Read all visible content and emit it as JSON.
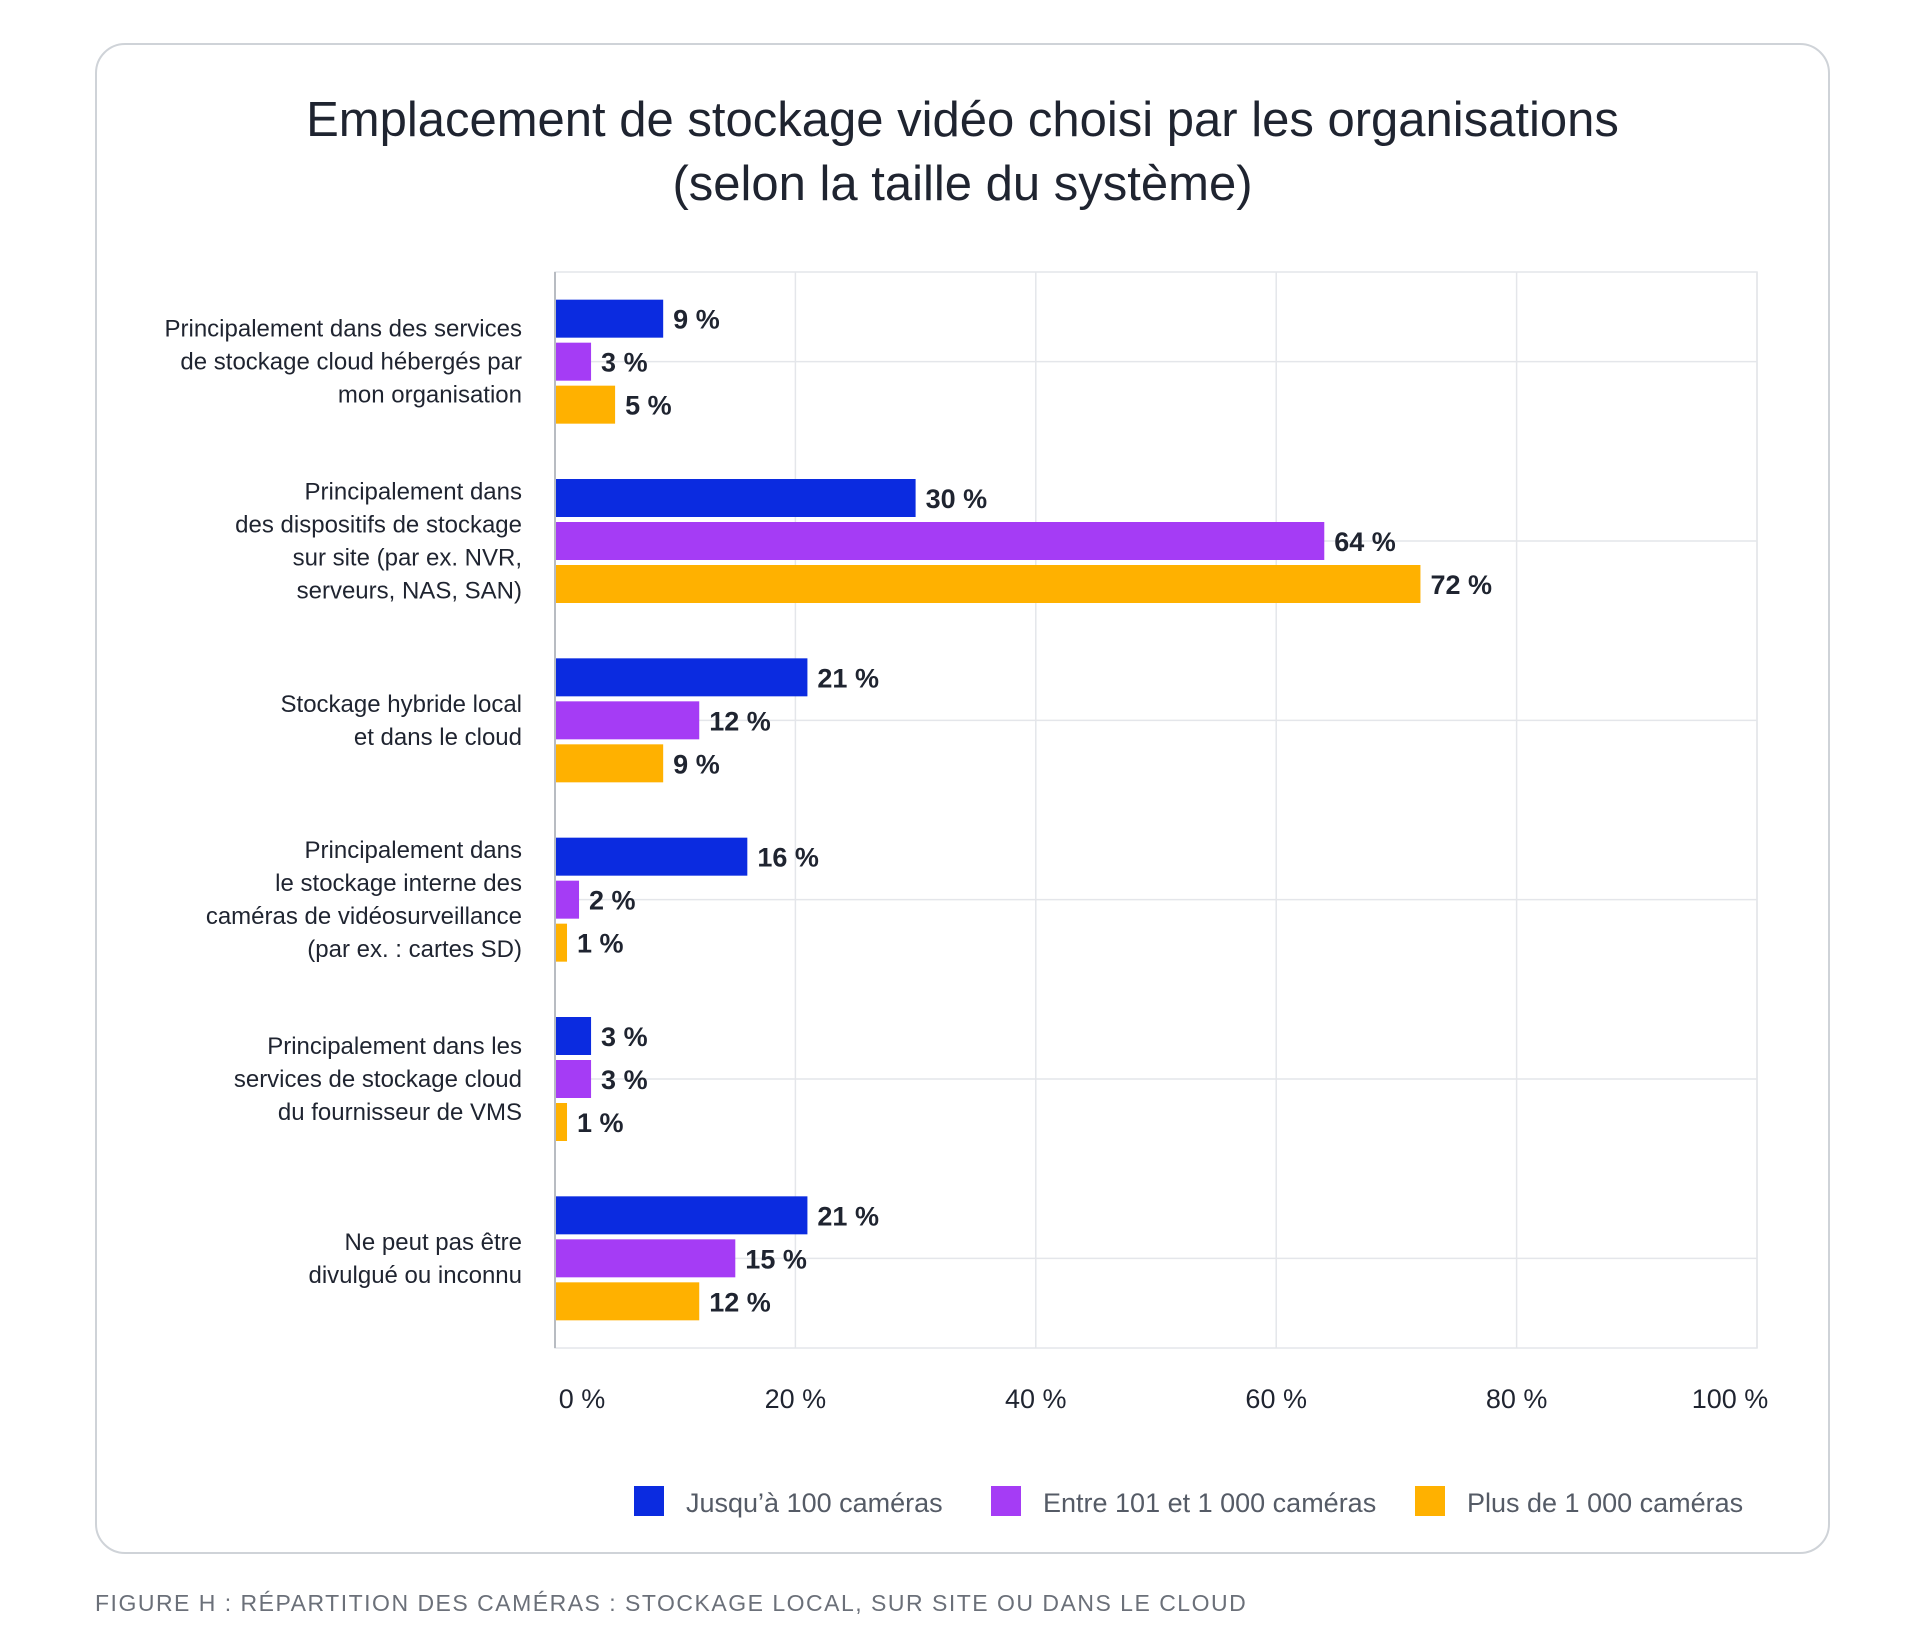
{
  "caption": "FIGURE H : RÉPARTITION DES CAMÉRAS : STOCKAGE LOCAL, SUR SITE OU DANS LE CLOUD",
  "chart_data": {
    "type": "bar",
    "orientation": "horizontal",
    "title": [
      "Emplacement de stockage vidéo choisi par les organisations",
      "(selon la taille du système)"
    ],
    "categories": [
      [
        "Principalement dans des services",
        "de stockage cloud hébergés par",
        "mon organisation"
      ],
      [
        "Principalement dans",
        "des dispositifs de stockage",
        "sur site (par ex. NVR,",
        "serveurs, NAS, SAN)"
      ],
      [
        "Stockage hybride local",
        "et dans le cloud"
      ],
      [
        "Principalement dans",
        "le stockage interne des",
        "caméras de vidéosurveillance",
        "(par ex. : cartes SD)"
      ],
      [
        "Principalement dans les",
        "services de stockage cloud",
        "du fournisseur de VMS"
      ],
      [
        "Ne peut pas être",
        "divulgué ou inconnu"
      ]
    ],
    "series": [
      {
        "name": "Jusqu’à 100 caméras",
        "color": "#0b2be0",
        "values": [
          9,
          30,
          21,
          16,
          3,
          21
        ],
        "labels": [
          "9 %",
          "30 %",
          "21 %",
          "16 %",
          "3 %",
          "21 %"
        ]
      },
      {
        "name": "Entre 101 et 1 000 caméras",
        "color": "#a53cf5",
        "values": [
          3,
          64,
          12,
          2,
          3,
          15
        ],
        "labels": [
          "3 %",
          "64 %",
          "12 %",
          "2 %",
          "3 %",
          "15 %"
        ]
      },
      {
        "name": "Plus de 1 000 caméras",
        "color": "#ffb100",
        "values": [
          5,
          72,
          9,
          1,
          1,
          12
        ],
        "labels": [
          "5 %",
          "72 %",
          "9 %",
          "1 %",
          "1 %",
          "12 %"
        ]
      }
    ],
    "xlim": [
      0,
      100
    ],
    "xticks": [
      0,
      20,
      40,
      60,
      80,
      100
    ],
    "xtick_labels": [
      "0 %",
      "20 %",
      "40 %",
      "60 %",
      "80 %",
      "100 %"
    ],
    "grid": true,
    "legend": "bottom-right",
    "colors": {
      "grid": "#e4e6ea",
      "axis": "#b8bcc2"
    }
  }
}
